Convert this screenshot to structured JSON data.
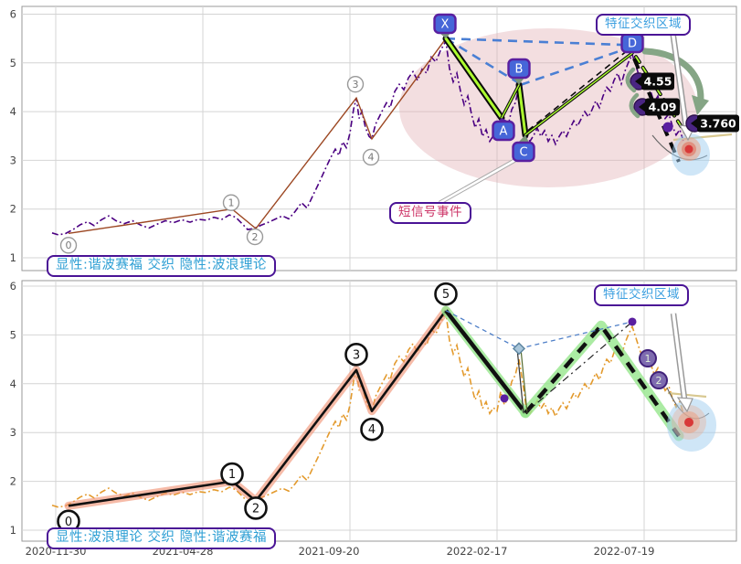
{
  "labels": {
    "caption_top": "显性:谐波赛福 交织 隐性:波浪理论",
    "caption_bottom": "显性:波浪理论 交织 隐性:谐波赛福",
    "region_top": "特征交织区域",
    "region_bottom": "特征交织区域",
    "signal_event": "短信号事件"
  },
  "chart_data": {
    "type": "line",
    "title": "",
    "x_tick_labels": [
      "2020-11-30",
      "2021-04-28",
      "2021-09-20",
      "2022-02-17",
      "2022-07-19"
    ],
    "y_ticks": [
      1,
      2,
      3,
      4,
      5,
      6
    ],
    "ylim": [
      0.85,
      6.15
    ],
    "grid": true,
    "panel_captions": [
      "显性:谐波赛福 交织 隐性:波浪理论",
      "显性:波浪理论 交织 隐性:谐波赛福"
    ],
    "price_series": {
      "name": "price",
      "points": [
        [
          57,
          1.51
        ],
        [
          64,
          1.47
        ],
        [
          72,
          1.5
        ],
        [
          80,
          1.58
        ],
        [
          88,
          1.68
        ],
        [
          96,
          1.74
        ],
        [
          103,
          1.66
        ],
        [
          111,
          1.78
        ],
        [
          119,
          1.86
        ],
        [
          127,
          1.76
        ],
        [
          136,
          1.7
        ],
        [
          145,
          1.76
        ],
        [
          154,
          1.67
        ],
        [
          163,
          1.61
        ],
        [
          172,
          1.69
        ],
        [
          181,
          1.76
        ],
        [
          190,
          1.72
        ],
        [
          199,
          1.78
        ],
        [
          208,
          1.73
        ],
        [
          217,
          1.79
        ],
        [
          226,
          1.77
        ],
        [
          234,
          1.83
        ],
        [
          243,
          1.79
        ],
        [
          251,
          1.88
        ],
        [
          258,
          1.83
        ],
        [
          265,
          1.7
        ],
        [
          271,
          1.58
        ],
        [
          278,
          1.6
        ],
        [
          286,
          1.67
        ],
        [
          294,
          1.73
        ],
        [
          302,
          1.8
        ],
        [
          309,
          1.86
        ],
        [
          316,
          1.8
        ],
        [
          323,
          1.95
        ],
        [
          330,
          2.13
        ],
        [
          336,
          2.02
        ],
        [
          343,
          2.3
        ],
        [
          349,
          2.53
        ],
        [
          356,
          2.82
        ],
        [
          362,
          3.06
        ],
        [
          367,
          3.23
        ],
        [
          371,
          3.1
        ],
        [
          375,
          3.38
        ],
        [
          379,
          3.26
        ],
        [
          383,
          3.56
        ],
        [
          387,
          4.05
        ],
        [
          390,
          4.28
        ],
        [
          393,
          3.86
        ],
        [
          396,
          4.01
        ],
        [
          400,
          3.67
        ],
        [
          404,
          3.49
        ],
        [
          407,
          3.44
        ],
        [
          411,
          3.74
        ],
        [
          415,
          3.89
        ],
        [
          419,
          4.04
        ],
        [
          423,
          4.18
        ],
        [
          427,
          4.08
        ],
        [
          432,
          4.41
        ],
        [
          437,
          4.56
        ],
        [
          442,
          4.45
        ],
        [
          447,
          4.69
        ],
        [
          452,
          4.82
        ],
        [
          457,
          4.64
        ],
        [
          462,
          4.87
        ],
        [
          467,
          4.79
        ],
        [
          472,
          5.12
        ],
        [
          477,
          5.02
        ],
        [
          482,
          5.25
        ],
        [
          488,
          5.45
        ],
        [
          492,
          4.88
        ],
        [
          496,
          4.61
        ],
        [
          500,
          4.79
        ],
        [
          504,
          4.42
        ],
        [
          508,
          4.14
        ],
        [
          512,
          4.32
        ],
        [
          516,
          3.95
        ],
        [
          520,
          3.67
        ],
        [
          524,
          3.85
        ],
        [
          528,
          3.49
        ],
        [
          532,
          3.63
        ],
        [
          536,
          3.39
        ],
        [
          540,
          3.51
        ],
        [
          544,
          3.44
        ],
        [
          548,
          3.84
        ],
        [
          552,
          3.57
        ],
        [
          556,
          3.7
        ],
        [
          560,
          4.04
        ],
        [
          564,
          4.18
        ],
        [
          568,
          4.5
        ],
        [
          572,
          4.04
        ],
        [
          576,
          3.49
        ],
        [
          580,
          3.39
        ],
        [
          584,
          3.51
        ],
        [
          588,
          3.66
        ],
        [
          592,
          3.49
        ],
        [
          596,
          3.61
        ],
        [
          600,
          3.39
        ],
        [
          604,
          3.51
        ],
        [
          608,
          3.33
        ],
        [
          612,
          3.49
        ],
        [
          616,
          3.61
        ],
        [
          620,
          3.49
        ],
        [
          624,
          3.66
        ],
        [
          628,
          3.81
        ],
        [
          632,
          3.7
        ],
        [
          636,
          3.85
        ],
        [
          640,
          4.0
        ],
        [
          644,
          3.89
        ],
        [
          648,
          4.04
        ],
        [
          652,
          4.22
        ],
        [
          656,
          4.08
        ],
        [
          660,
          4.32
        ],
        [
          664,
          4.5
        ],
        [
          668,
          4.42
        ],
        [
          672,
          4.64
        ],
        [
          676,
          4.79
        ],
        [
          680,
          4.57
        ],
        [
          684,
          4.83
        ],
        [
          688,
          5.02
        ],
        [
          692,
          5.17
        ],
        [
          696,
          4.94
        ],
        [
          700,
          4.7
        ],
        [
          704,
          4.51
        ],
        [
          708,
          4.64
        ],
        [
          712,
          4.42
        ],
        [
          716,
          4.19
        ],
        [
          720,
          4.32
        ],
        [
          724,
          4.04
        ],
        [
          728,
          3.86
        ],
        [
          732,
          3.95
        ],
        [
          736,
          3.7
        ],
        [
          740,
          3.52
        ],
        [
          744,
          3.63
        ],
        [
          748,
          3.39
        ]
      ]
    },
    "elliott_waves": {
      "labels": [
        "0",
        "1",
        "2",
        "3",
        "4",
        "5"
      ],
      "points": [
        [
          75,
          1.5
        ],
        [
          254,
          2.0
        ],
        [
          280,
          1.6
        ],
        [
          390,
          4.28
        ],
        [
          407,
          3.44
        ],
        [
          488,
          5.5
        ]
      ]
    },
    "harmonic_xabcd": {
      "labels": [
        "X",
        "A",
        "B",
        "C",
        "D"
      ],
      "points": [
        [
          488,
          5.5
        ],
        [
          549,
          3.87
        ],
        [
          568,
          4.55
        ],
        [
          575,
          3.52
        ],
        [
          692,
          5.2
        ]
      ]
    },
    "projection": {
      "price_level_callouts": [
        "4.55",
        "4.09",
        "3.760"
      ],
      "black_dashed_end": [
        743,
        2.97
      ],
      "green_dashed_path": [
        [
          575,
          3.4
        ],
        [
          658,
          5.19
        ],
        [
          743,
          2.93
        ]
      ],
      "hidden_B_diamond": [
        568,
        4.72
      ],
      "hidden_C_low": [
        575,
        3.4
      ],
      "hidden_D_dot": [
        692,
        5.27
      ],
      "mid_purple_dot": [
        552,
        3.7
      ],
      "top_purple_dot": [
        731,
        3.68
      ],
      "subwave_labels": [
        "1",
        "2"
      ],
      "subwave_points": [
        [
          709,
          4.52
        ],
        [
          721,
          4.07
        ]
      ],
      "target_dot_top": [
        754,
        3.23
      ],
      "target_dot_bottom": [
        754,
        3.21
      ]
    }
  },
  "colors": {
    "purple_price": "#4B0082",
    "orange_price": "#E39A2D",
    "sienna_line": "#9C4722",
    "black_line": "#111111",
    "salmon_glow": "rgba(240,142,110,0.60)",
    "green_glow": "rgba(150,230,140,0.80)",
    "stripe_green": "#ADFF2F",
    "blue_dash": "#4A7FD4",
    "marker_fill": "#4666D8",
    "marker_border": "#5A1FA0",
    "pink_ellipse": "rgba(226,176,180,0.42)",
    "callout_bg": "#0A0A0A",
    "callout_text": "#FFFFFF",
    "disc_purple": "#4A2583",
    "sage_arrow": "#85A585",
    "red_dot": "#D83838",
    "blue_halo": "rgba(160,205,240,0.50)",
    "salmon_halo": "rgba(235,160,130,0.55)",
    "khaki": "#D8C890",
    "gridline": "#D4D4D4",
    "spine": "#999999",
    "tick_text": "#444444",
    "gray_circle": "#999999",
    "subwave_fill": "#7E6BAF",
    "subwave_border": "#41227A",
    "subwave_text": "#DFF0D8",
    "diamond_fill": "#A9C6DA",
    "diamond_border": "#5E86A0"
  }
}
